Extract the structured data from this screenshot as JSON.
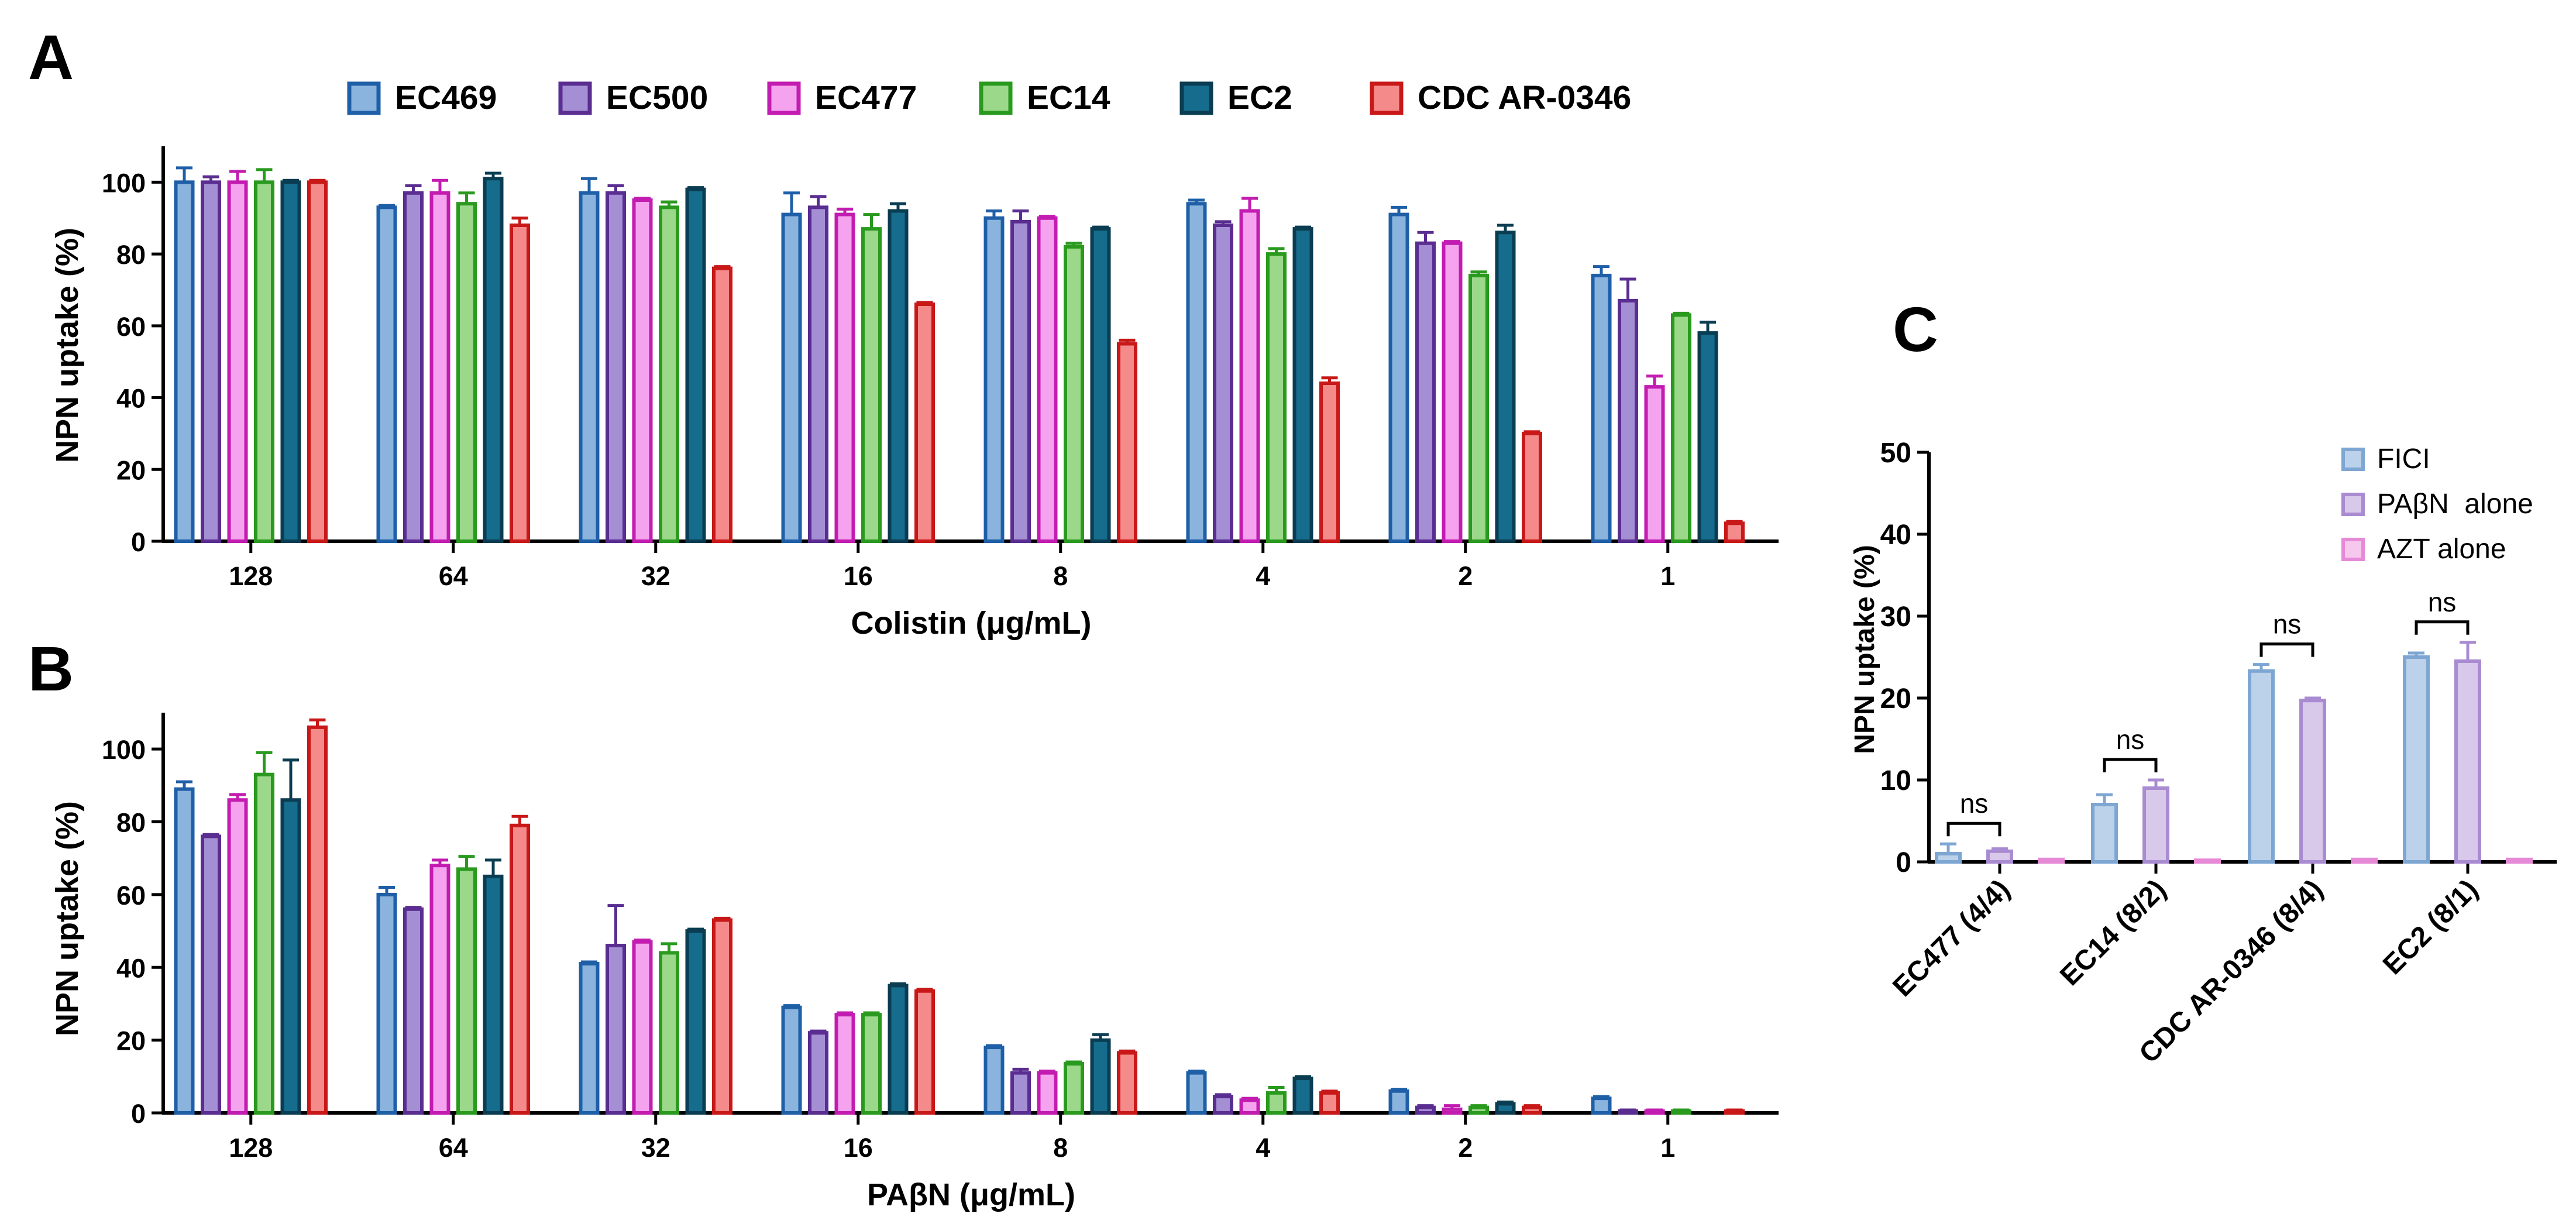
{
  "panel_labels": {
    "a": "A",
    "b": "B",
    "c": "C"
  },
  "legend_ab": [
    {
      "name": "EC469",
      "fill": "#8ab4dd",
      "stroke": "#1f5fa8"
    },
    {
      "name": "EC500",
      "fill": "#a48ed4",
      "stroke": "#5a2d91"
    },
    {
      "name": "EC477",
      "fill": "#f5a3ef",
      "stroke": "#c21cb0"
    },
    {
      "name": "EC14",
      "fill": "#9bd88a",
      "stroke": "#2a9a1f"
    },
    {
      "name": "EC2",
      "fill": "#166c8c",
      "stroke": "#0b3d52"
    },
    {
      "name": "CDC AR-0346",
      "fill": "#f58a8a",
      "stroke": "#c81818"
    }
  ],
  "chart_data": [
    {
      "id": "A",
      "type": "bar",
      "xlabel": "Colistin (μg/mL)",
      "ylabel": "NPN uptake (%)",
      "ylim": [
        0,
        110
      ],
      "yticks": [
        0,
        20,
        40,
        60,
        80,
        100
      ],
      "categories": [
        "128",
        "64",
        "32",
        "16",
        "8",
        "4",
        "2",
        "1"
      ],
      "series": [
        {
          "name": "EC469",
          "values": [
            100,
            93,
            97,
            91,
            90,
            94,
            91,
            74
          ],
          "errors": [
            4,
            0.5,
            4,
            6,
            2,
            1,
            2,
            2.5
          ]
        },
        {
          "name": "EC500",
          "values": [
            100,
            97,
            97,
            93,
            89,
            88,
            83,
            67
          ],
          "errors": [
            1.5,
            2,
            2,
            3,
            3,
            1,
            3,
            6
          ]
        },
        {
          "name": "EC477",
          "values": [
            100,
            97,
            95,
            91,
            90,
            92,
            83,
            43
          ],
          "errors": [
            3,
            3.5,
            0.5,
            1.5,
            0.5,
            3.5,
            0.5,
            3
          ]
        },
        {
          "name": "EC14",
          "values": [
            100,
            94,
            93,
            87,
            82,
            80,
            74,
            63
          ],
          "errors": [
            3.5,
            3,
            1.5,
            4,
            1,
            1.5,
            1,
            0.5
          ]
        },
        {
          "name": "EC2",
          "values": [
            100,
            101,
            98,
            92,
            87,
            87,
            86,
            58
          ],
          "errors": [
            0.5,
            1.5,
            0.5,
            2,
            0.5,
            0.5,
            2,
            3
          ]
        },
        {
          "name": "CDC AR-0346",
          "values": [
            100,
            88,
            76,
            66,
            55,
            44,
            30,
            5
          ],
          "errors": [
            0.5,
            2,
            0.5,
            0.5,
            1,
            1.5,
            0.5,
            0.5
          ]
        }
      ]
    },
    {
      "id": "B",
      "type": "bar",
      "xlabel": "PAβN (μg/mL)",
      "ylabel": "NPN uptake (%)",
      "ylim": [
        0,
        110
      ],
      "yticks": [
        0,
        20,
        40,
        60,
        80,
        100
      ],
      "categories": [
        "128",
        "64",
        "32",
        "16",
        "8",
        "4",
        "2",
        "1"
      ],
      "series": [
        {
          "name": "EC469",
          "values": [
            89,
            60,
            41,
            29,
            18,
            11,
            6,
            4
          ],
          "errors": [
            2,
            2,
            0.5,
            0.5,
            0.5,
            0.5,
            0.5,
            0.5
          ]
        },
        {
          "name": "EC500",
          "values": [
            76,
            56,
            46,
            22,
            11,
            4.5,
            1.5,
            0.5
          ],
          "errors": [
            0.5,
            0.5,
            11,
            0.5,
            1,
            0.5,
            0.5,
            0.3
          ]
        },
        {
          "name": "EC477",
          "values": [
            86,
            68,
            47,
            27,
            11,
            3.5,
            1,
            0.5
          ],
          "errors": [
            1.5,
            1.5,
            0.5,
            0.5,
            0.5,
            0.5,
            1,
            0.3
          ]
        },
        {
          "name": "EC14",
          "values": [
            93,
            67,
            44,
            27,
            13.5,
            5.5,
            1.5,
            0.5
          ],
          "errors": [
            6,
            3.5,
            2.5,
            0.5,
            0.5,
            1.5,
            0.5,
            0.3
          ]
        },
        {
          "name": "EC2",
          "values": [
            86,
            65,
            50,
            35,
            20,
            9.5,
            2.5,
            0
          ],
          "errors": [
            11,
            4.5,
            0.5,
            0.5,
            1.5,
            0.5,
            0.5,
            0
          ]
        },
        {
          "name": "CDC AR-0346",
          "values": [
            106,
            79,
            53,
            33.5,
            16.5,
            5.5,
            1.5,
            0.5
          ],
          "errors": [
            2,
            2.5,
            0.5,
            0.5,
            0.5,
            0.5,
            0.5,
            0.3
          ]
        }
      ]
    },
    {
      "id": "C",
      "type": "bar",
      "xlabel": "",
      "ylabel": "NPN uptake (%)",
      "ylim": [
        0,
        50
      ],
      "yticks": [
        0,
        10,
        20,
        30,
        40,
        50
      ],
      "categories": [
        "EC477 (4/4)",
        "EC14 (8/2)",
        "CDC AR-0346 (8/4)",
        "EC2 (8/1)"
      ],
      "legend": [
        {
          "name": "FICI",
          "fill": "#bcd2ea",
          "stroke": "#7ea6d2"
        },
        {
          "name": "PAβN  alone",
          "fill": "#d8c8ea",
          "stroke": "#a98bd2"
        },
        {
          "name": "AZT alone",
          "fill": "#f6c8ee",
          "stroke": "#e68ad8"
        }
      ],
      "series": [
        {
          "name": "FICI",
          "values": [
            1,
            7,
            23.3,
            25
          ],
          "errors": [
            1.2,
            1.2,
            0.8,
            0.5
          ]
        },
        {
          "name": "PAβN  alone",
          "values": [
            1.3,
            9,
            19.7,
            24.5
          ],
          "errors": [
            0.3,
            1,
            0.3,
            2.3
          ]
        },
        {
          "name": "AZT alone",
          "values": [
            0.3,
            0.2,
            0.3,
            0.3
          ],
          "errors": [
            0,
            0,
            0,
            0
          ]
        }
      ],
      "annotations": [
        "ns",
        "ns",
        "ns",
        "ns"
      ]
    }
  ]
}
